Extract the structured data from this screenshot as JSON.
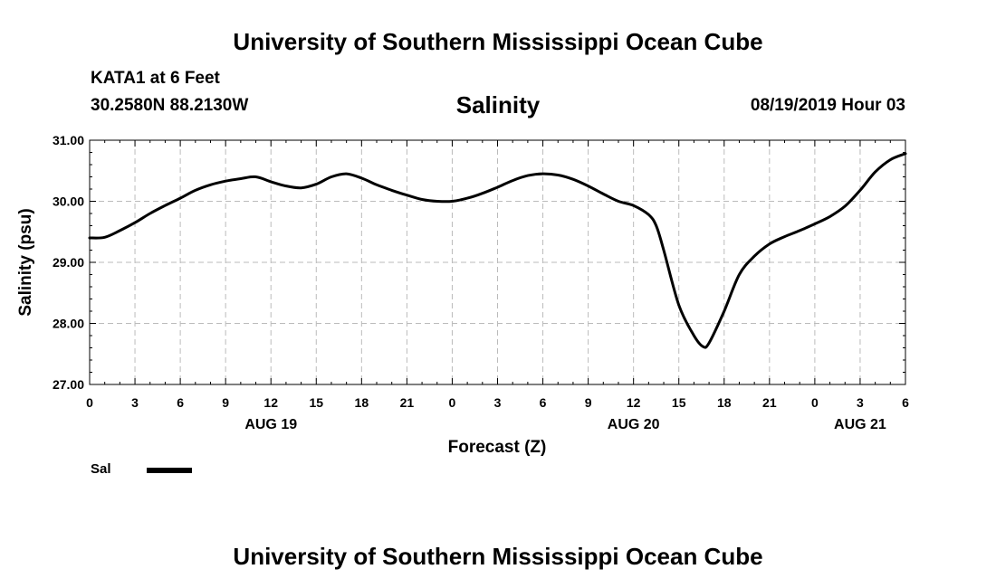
{
  "header": {
    "title": "University of Southern Mississippi Ocean Cube",
    "station": "KATA1 at 6 Feet",
    "coords": "30.2580N 88.2130W",
    "chart_title": "Salinity",
    "timestamp": "08/19/2019 Hour 03"
  },
  "footer": {
    "title": "University of Southern Mississippi Ocean Cube"
  },
  "legend": {
    "label": "Sal",
    "color": "#000000"
  },
  "chart_data": {
    "type": "line",
    "title": "Salinity",
    "xlabel": "Forecast (Z)",
    "ylabel": "Salinity (psu)",
    "xlim": [
      0,
      54
    ],
    "ylim": [
      27,
      31
    ],
    "y_ticks": [
      "27.00",
      "28.00",
      "29.00",
      "30.00",
      "31.00"
    ],
    "x_ticks": [
      "0",
      "3",
      "6",
      "9",
      "12",
      "15",
      "18",
      "21",
      "0",
      "3",
      "6",
      "9",
      "12",
      "15",
      "18",
      "21",
      "0",
      "3",
      "6"
    ],
    "date_labels": [
      {
        "hour": 12,
        "text": "AUG 19"
      },
      {
        "hour": 36,
        "text": "AUG 20"
      },
      {
        "hour": 51,
        "text": "AUG 21"
      }
    ],
    "grid": true,
    "series": [
      {
        "name": "Sal",
        "x": [
          0,
          1,
          2,
          3,
          4,
          5,
          6,
          7,
          8,
          9,
          10,
          11,
          12,
          13,
          14,
          15,
          16,
          17,
          18,
          19,
          20,
          21,
          22,
          23,
          24,
          25,
          26,
          27,
          28,
          29,
          30,
          31,
          32,
          33,
          34,
          35,
          36,
          37,
          37.5,
          38,
          39,
          40,
          40.6,
          41,
          42,
          43,
          44,
          45,
          46,
          47,
          48,
          49,
          50,
          51,
          52,
          53,
          54
        ],
        "values": [
          29.4,
          29.41,
          29.52,
          29.65,
          29.8,
          29.93,
          30.05,
          30.18,
          30.27,
          30.33,
          30.37,
          30.4,
          30.32,
          30.25,
          30.22,
          30.28,
          30.4,
          30.45,
          30.38,
          30.27,
          30.18,
          30.1,
          30.03,
          30.0,
          30.0,
          30.05,
          30.13,
          30.23,
          30.34,
          30.42,
          30.45,
          30.43,
          30.36,
          30.25,
          30.12,
          30.0,
          29.93,
          29.78,
          29.6,
          29.2,
          28.3,
          27.8,
          27.62,
          27.68,
          28.2,
          28.8,
          29.1,
          29.3,
          29.42,
          29.52,
          29.63,
          29.75,
          29.92,
          30.18,
          30.48,
          30.68,
          30.78
        ]
      }
    ]
  }
}
